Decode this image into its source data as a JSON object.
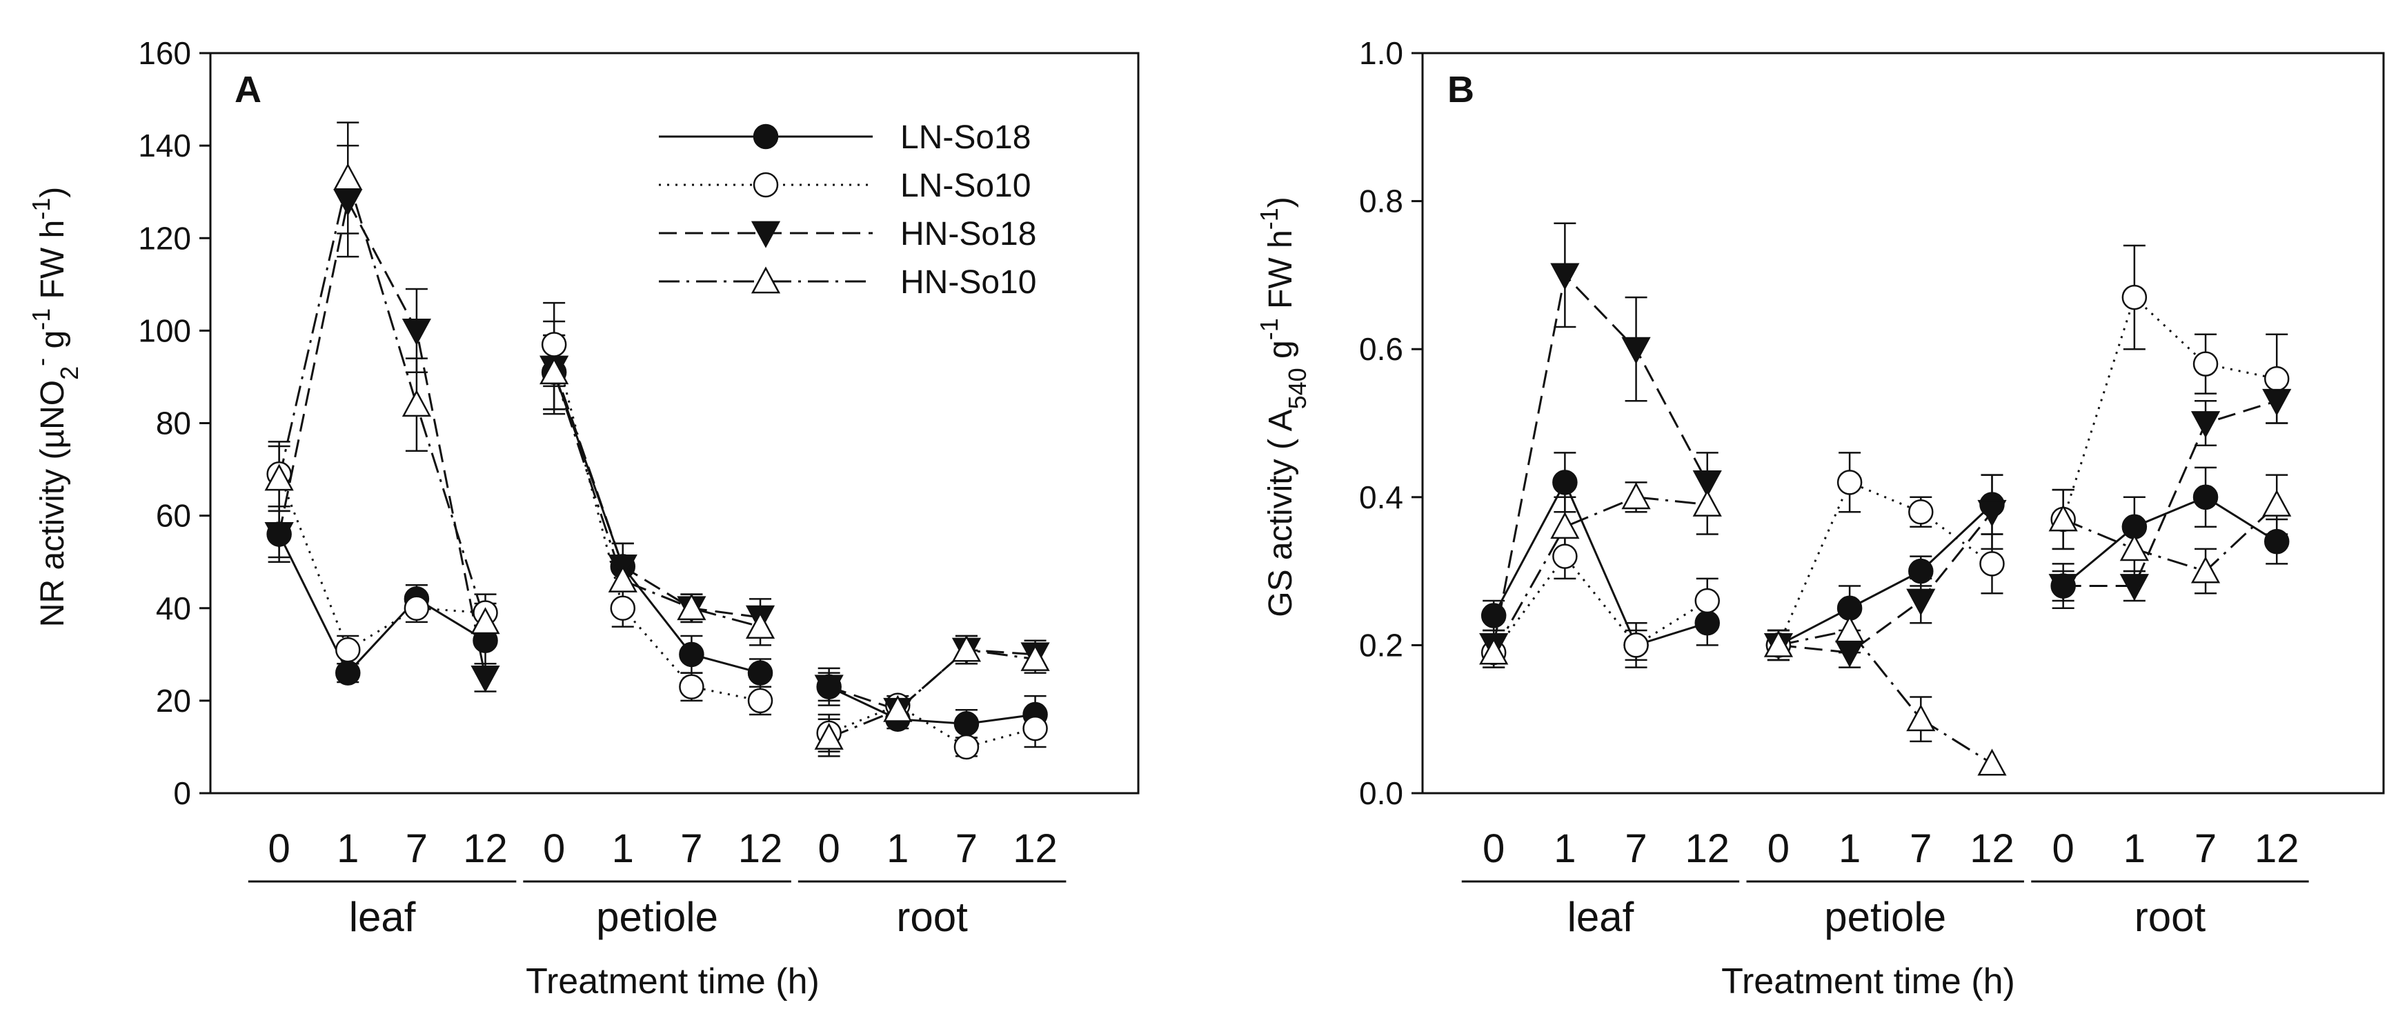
{
  "chart_data": [
    {
      "panel": "A",
      "type": "line",
      "ylabel": "NR activity (µNO2- g-1 FW h-1)",
      "ylabel_parts": {
        "pre": "NR activity (",
        "mu": "µNO",
        "sub": "2",
        "sup1": "-",
        "g": " g",
        "sup2": "-1",
        "fw": " FW h",
        "sup3": "-1",
        "post": ")"
      },
      "xlabel": "Treatment time (h)",
      "ylim": [
        0,
        160
      ],
      "yticks": [
        "0",
        "20",
        "40",
        "60",
        "80",
        "100",
        "120",
        "140",
        "160"
      ],
      "ytick_values": [
        0,
        20,
        40,
        60,
        80,
        100,
        120,
        140,
        160
      ],
      "x_tick_labels": [
        "0",
        "1",
        "7",
        "12",
        "0",
        "1",
        "7",
        "12",
        "0",
        "1",
        "7",
        "12"
      ],
      "groups": [
        "leaf",
        "petiole",
        "root"
      ],
      "series": [
        {
          "name": "LN-So18",
          "marker": "filled-circle",
          "dash": "solid",
          "values": [
            [
              56,
              26,
              42,
              33
            ],
            [
              91,
              49,
              30,
              26
            ],
            [
              23,
              16,
              15,
              17
            ]
          ],
          "errors": [
            [
              6,
              2,
              3,
              5
            ],
            [
              8,
              5,
              4,
              3
            ],
            [
              4,
              2,
              3,
              4
            ]
          ]
        },
        {
          "name": "LN-So10",
          "marker": "open-circle",
          "dash": "dotted",
          "values": [
            [
              69,
              31,
              40,
              39
            ],
            [
              97,
              40,
              23,
              20
            ],
            [
              13,
              19,
              10,
              14
            ]
          ],
          "errors": [
            [
              7,
              3,
              3,
              4
            ],
            [
              9,
              4,
              3,
              3
            ],
            [
              4,
              2,
              2,
              4
            ]
          ]
        },
        {
          "name": "HN-So18",
          "marker": "filled-triangle-down",
          "dash": "dashed",
          "values": [
            [
              56,
              128,
              100,
              25
            ],
            [
              92,
              49,
              40,
              38
            ],
            [
              23,
              18,
              31,
              30
            ]
          ],
          "errors": [
            [
              5,
              12,
              9,
              3
            ],
            [
              10,
              5,
              3,
              4
            ],
            [
              3,
              2,
              3,
              3
            ]
          ]
        },
        {
          "name": "HN-So10",
          "marker": "open-triangle-up",
          "dash": "dash-dot",
          "values": [
            [
              68,
              133,
              84,
              37
            ],
            [
              91,
              46,
              40,
              36
            ],
            [
              12,
              18,
              31,
              29
            ]
          ],
          "errors": [
            [
              7,
              12,
              10,
              4
            ],
            [
              8,
              5,
              3,
              4
            ],
            [
              4,
              2,
              3,
              3
            ]
          ]
        }
      ]
    },
    {
      "panel": "B",
      "type": "line",
      "ylabel": "GS activity ( A540 g-1 FW h-1)",
      "ylabel_parts": {
        "pre": "GS activity ( A",
        "sub": "540",
        "g": " g",
        "sup2": "-1",
        "fw": " FW h",
        "sup3": "-1",
        "post": ")"
      },
      "xlabel": "Treatment time (h)",
      "ylim": [
        0,
        1
      ],
      "yticks": [
        "0.0",
        "0.2",
        "0.4",
        "0.6",
        "0.8",
        "1.0"
      ],
      "ytick_values": [
        0,
        0.2,
        0.4,
        0.6,
        0.8,
        1.0
      ],
      "x_tick_labels": [
        "0",
        "1",
        "7",
        "12",
        "0",
        "1",
        "7",
        "12",
        "0",
        "1",
        "7",
        "12"
      ],
      "groups": [
        "leaf",
        "petiole",
        "root"
      ],
      "series": [
        {
          "name": "LN-So18",
          "marker": "filled-circle",
          "dash": "solid",
          "values": [
            [
              0.24,
              0.42,
              0.2,
              0.23
            ],
            [
              0.2,
              0.25,
              0.3,
              0.39
            ],
            [
              0.28,
              0.36,
              0.4,
              0.34
            ]
          ],
          "errors": [
            [
              0.02,
              0.04,
              0.02,
              0.03
            ],
            [
              0.02,
              0.03,
              0.02,
              0.04
            ],
            [
              0.03,
              0.04,
              0.04,
              0.03
            ]
          ]
        },
        {
          "name": "LN-So10",
          "marker": "open-circle",
          "dash": "dotted",
          "values": [
            [
              0.19,
              0.32,
              0.2,
              0.26
            ],
            [
              0.2,
              0.42,
              0.38,
              0.31
            ],
            [
              0.37,
              0.67,
              0.58,
              0.56
            ]
          ],
          "errors": [
            [
              0.02,
              0.03,
              0.03,
              0.03
            ],
            [
              0.02,
              0.04,
              0.02,
              0.04
            ],
            [
              0.04,
              0.07,
              0.04,
              0.06
            ]
          ]
        },
        {
          "name": "HN-So18",
          "marker": "filled-triangle-down",
          "dash": "dashed",
          "values": [
            [
              0.2,
              0.7,
              0.6,
              0.42
            ],
            [
              0.2,
              0.19,
              0.26,
              0.38
            ],
            [
              0.28,
              0.28,
              0.5,
              0.53
            ]
          ],
          "errors": [
            [
              0.02,
              0.07,
              0.07,
              0.04
            ],
            [
              0.02,
              0.02,
              0.03,
              0.05
            ],
            [
              0.02,
              0.02,
              0.03,
              0.03
            ]
          ]
        },
        {
          "name": "HN-So10",
          "marker": "open-triangle-up",
          "dash": "dash-dot",
          "values": [
            [
              0.19,
              0.36,
              0.4,
              0.39
            ],
            [
              0.2,
              0.22,
              0.1,
              0.04
            ],
            [
              0.37,
              0.33,
              0.3,
              0.39
            ]
          ],
          "errors": [
            [
              0.02,
              0.04,
              0.02,
              0.04
            ],
            [
              0.02,
              0.03,
              0.03,
              0.0
            ],
            [
              0.04,
              0.03,
              0.03,
              0.04
            ]
          ]
        }
      ]
    }
  ],
  "legend": [
    "LN-So18",
    "LN-So10",
    "HN-So18",
    "HN-So10"
  ]
}
